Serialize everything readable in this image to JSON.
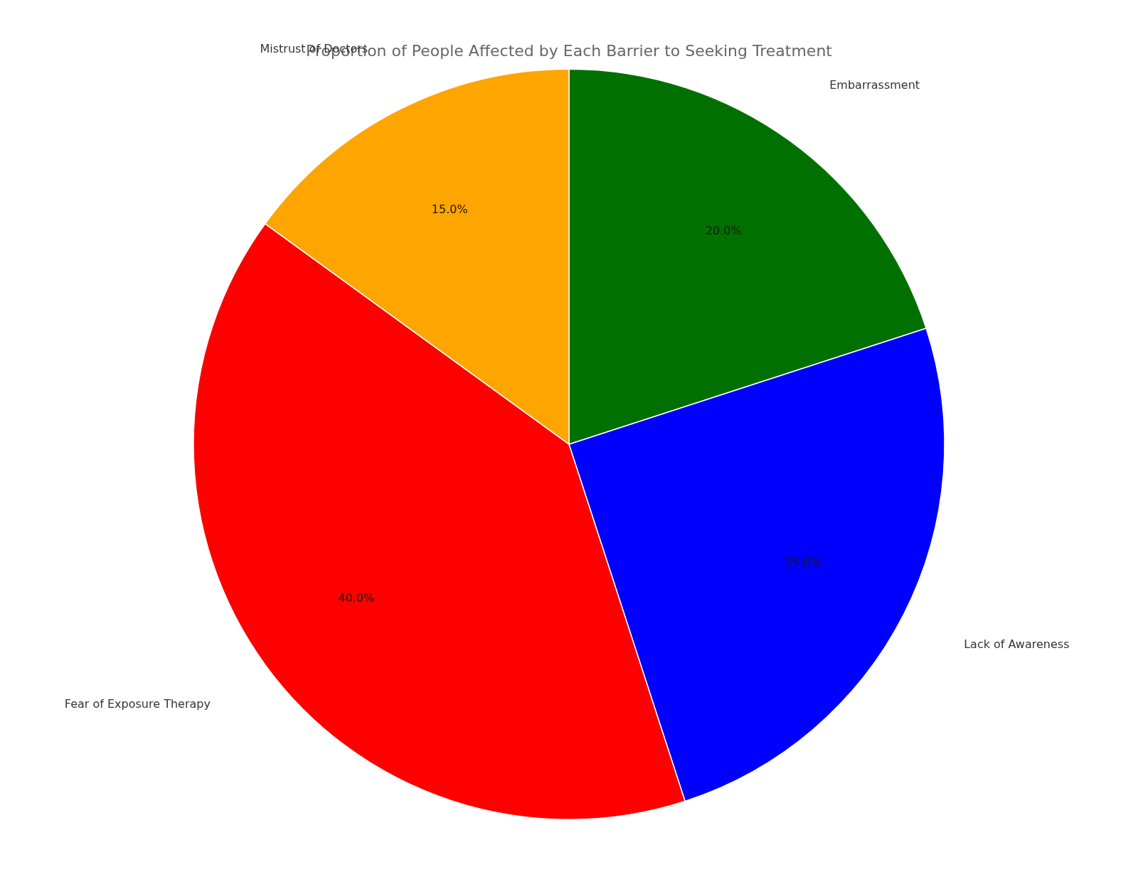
{
  "chart_data": {
    "type": "pie",
    "title": "Proportion of People Affected by Each Barrier to Seeking Treatment",
    "categories": [
      "Embarrassment",
      "Lack of Awareness",
      "Fear of Exposure Therapy",
      "Mistrust of Doctors"
    ],
    "values": [
      20.0,
      25.0,
      40.0,
      15.0
    ],
    "value_labels": [
      "20.0%",
      "25.0%",
      "40.0%",
      "15.0%"
    ],
    "colors": [
      "#007000",
      "#0000ff",
      "#ff0000",
      "#ffa500"
    ],
    "data_labels": true
  }
}
